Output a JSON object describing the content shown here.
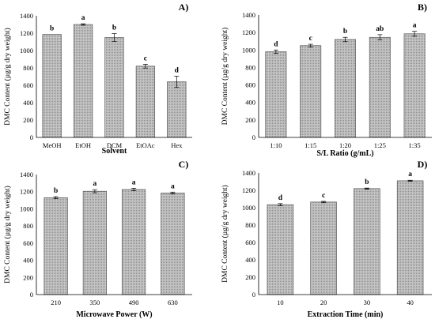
{
  "colors": {
    "bar_fill": "#c4c4c4",
    "bar_stroke": "#444444",
    "axis": "#000000",
    "background": "#ffffff"
  },
  "chart_data": [
    {
      "type": "bar",
      "panel_label": "A)",
      "xlabel": "Solvent",
      "ylabel": "DMC Content (µg/g dry weight)",
      "ylim": [
        0,
        1400
      ],
      "yticks": [
        0,
        200,
        400,
        600,
        800,
        1000,
        1200,
        1400
      ],
      "categories": [
        "MeOH",
        "EtOH",
        "DCM",
        "EtOAc",
        "Hex"
      ],
      "values": [
        1185,
        1300,
        1150,
        820,
        640
      ],
      "errors": [
        0,
        8,
        45,
        22,
        65
      ],
      "significance": [
        "b",
        "a",
        "b",
        "c",
        "d"
      ],
      "grid": false,
      "legend": "none"
    },
    {
      "type": "bar",
      "panel_label": "B)",
      "xlabel": "S/L Ratio (g/mL)",
      "ylabel": "DMC Content (µg/g dry weight)",
      "ylim": [
        0,
        1400
      ],
      "yticks": [
        0,
        200,
        400,
        600,
        800,
        1000,
        1200,
        1400
      ],
      "categories": [
        "1:10",
        "1:15",
        "1:20",
        "1:25",
        "1:35"
      ],
      "values": [
        980,
        1050,
        1120,
        1145,
        1185
      ],
      "errors": [
        20,
        15,
        25,
        30,
        28
      ],
      "significance": [
        "d",
        "c",
        "b",
        "ab",
        "a"
      ],
      "grid": false,
      "legend": "none"
    },
    {
      "type": "bar",
      "panel_label": "C)",
      "xlabel": "Microwave Power (W)",
      "ylabel": "DMC Content (µg/g dry weight)",
      "ylim": [
        0,
        1400
      ],
      "yticks": [
        0,
        200,
        400,
        600,
        800,
        1000,
        1200,
        1400
      ],
      "categories": [
        "210",
        "350",
        "490",
        "630"
      ],
      "values": [
        1130,
        1205,
        1225,
        1185
      ],
      "errors": [
        12,
        18,
        15,
        10
      ],
      "significance": [
        "b",
        "a",
        "a",
        "a"
      ],
      "grid": false,
      "legend": "none"
    },
    {
      "type": "bar",
      "panel_label": "D)",
      "xlabel": "Extraction Time (min)",
      "ylabel": "DMC Content (µg/g dry weight)",
      "ylim": [
        0,
        1400
      ],
      "yticks": [
        0,
        200,
        400,
        600,
        800,
        1000,
        1200,
        1400
      ],
      "categories": [
        "10",
        "20",
        "30",
        "40"
      ],
      "values": [
        1035,
        1065,
        1220,
        1310
      ],
      "errors": [
        12,
        8,
        6,
        6
      ],
      "significance": [
        "d",
        "c",
        "b",
        "a"
      ],
      "grid": false,
      "legend": "none"
    }
  ]
}
